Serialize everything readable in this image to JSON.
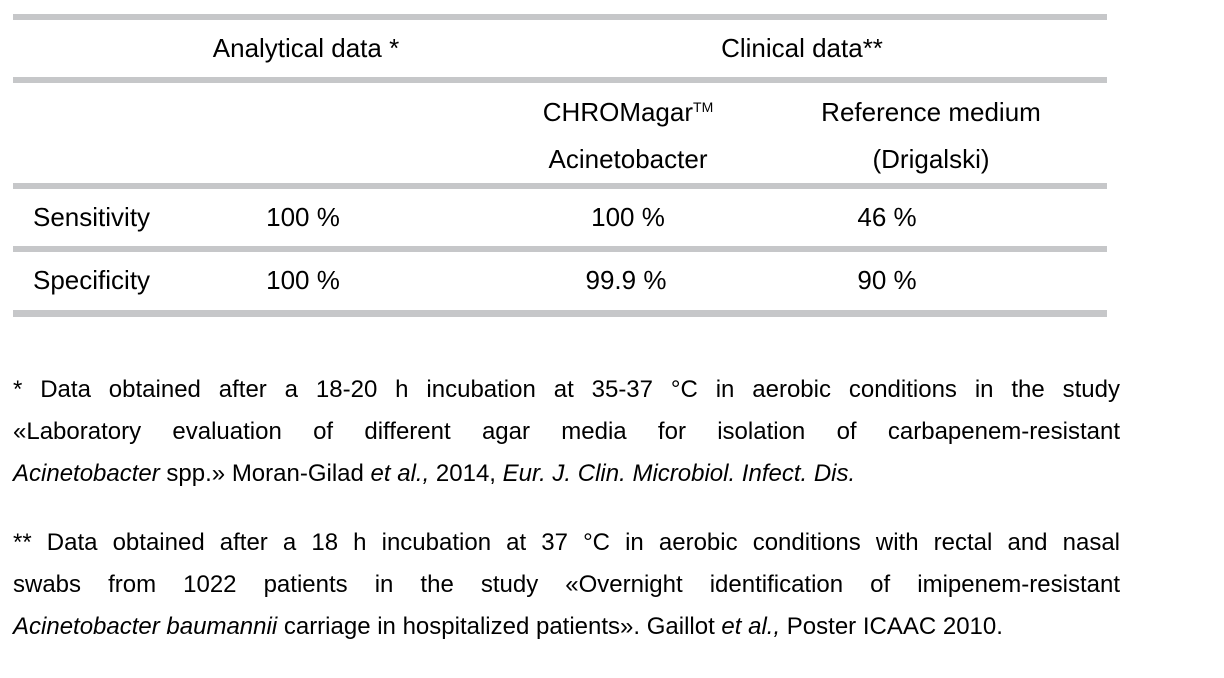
{
  "colors": {
    "rule_gray": "#c6c7c9",
    "text": "#000000",
    "background": "#ffffff"
  },
  "table": {
    "group_headers": [
      {
        "label": "Analytical data *"
      },
      {
        "label": "Clinical data**"
      }
    ],
    "column_headers": [
      {
        "line1": "CHROMagar",
        "sup": "TM",
        "line2": "Acinetobacter"
      },
      {
        "line1": "Reference medium",
        "line2": "(Drigalski)"
      }
    ],
    "rows": [
      {
        "label": "Sensitivity",
        "values": [
          "100 %",
          "100 %",
          "46 %"
        ]
      },
      {
        "label": "Specificity",
        "values": [
          "100 %",
          "99.9 %",
          "90 %"
        ]
      }
    ]
  },
  "chart_data": {
    "type": "table",
    "title": "",
    "columns": [
      "",
      "Analytical data *",
      "CHROMagar TM Acinetobacter (Clinical data**)",
      "Reference medium (Drigalski) (Clinical data**)"
    ],
    "rows": [
      [
        "Sensitivity",
        "100 %",
        "100 %",
        "46 %"
      ],
      [
        "Specificity",
        "100 %",
        "99.9 %",
        "90 %"
      ]
    ]
  },
  "footnotes": [
    {
      "lines": [
        {
          "justify": true,
          "segments": [
            {
              "t": "* Data obtained after a 18-20 h incubation at 35-37 °C in aerobic conditions in the study",
              "i": false
            }
          ]
        },
        {
          "justify": true,
          "segments": [
            {
              "t": "«Laboratory evaluation of different agar media for isolation of carbapenem-resistant",
              "i": false
            }
          ]
        },
        {
          "justify": false,
          "segments": [
            {
              "t": "Acinetobacter",
              "i": true
            },
            {
              "t": " spp.» Moran-Gilad ",
              "i": false
            },
            {
              "t": "et al.,",
              "i": true
            },
            {
              "t": " 2014, ",
              "i": false
            },
            {
              "t": "Eur. J. Clin. Microbiol. Infect. Dis.",
              "i": true
            }
          ]
        }
      ]
    },
    {
      "lines": [
        {
          "justify": true,
          "segments": [
            {
              "t": "** Data obtained after a 18 h incubation at 37 °C in aerobic conditions with rectal and nasal",
              "i": false
            }
          ]
        },
        {
          "justify": true,
          "segments": [
            {
              "t": "swabs from 1022 patients in the study «Overnight identification of imipenem-resistant",
              "i": false
            }
          ]
        },
        {
          "justify": false,
          "segments": [
            {
              "t": "Acinetobacter baumannii",
              "i": true
            },
            {
              "t": " carriage in hospitalized patients». Gaillot ",
              "i": false
            },
            {
              "t": "et al.,",
              "i": true
            },
            {
              "t": " Poster ICAAC 2010.",
              "i": false
            }
          ]
        }
      ]
    }
  ]
}
